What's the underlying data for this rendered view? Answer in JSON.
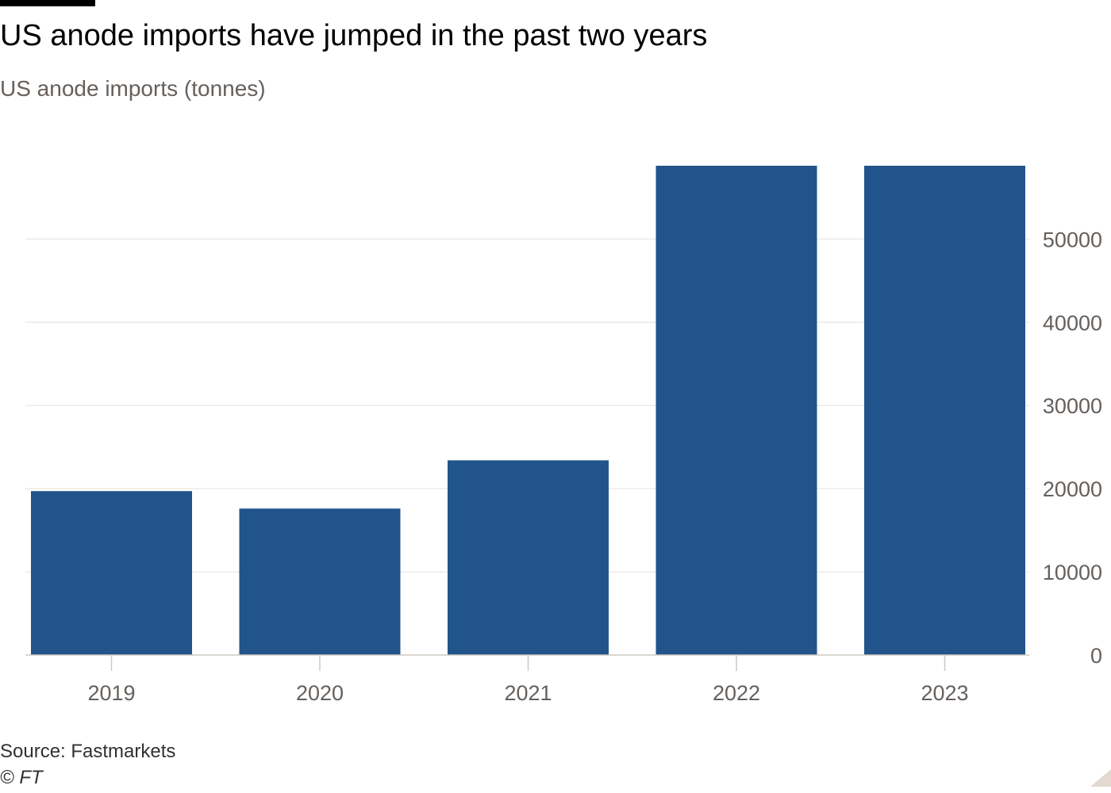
{
  "title": "US anode imports have jumped in the past two years",
  "subtitle": "US anode imports (tonnes)",
  "source": "Source: Fastmarkets",
  "copyright": "© FT",
  "colors": {
    "bar": "#21548b",
    "grid": "#e6e0d9",
    "axis_text": "#66605c",
    "baseline": "#cfc8c1"
  },
  "chart_data": {
    "type": "bar",
    "title": "US anode imports have jumped in the past two years",
    "subtitle": "US anode imports (tonnes)",
    "xlabel": "",
    "ylabel": "",
    "categories": [
      "2019",
      "2020",
      "2021",
      "2022",
      "2023"
    ],
    "values": [
      19700,
      17600,
      23400,
      58800,
      58800
    ],
    "yticks": [
      0,
      10000,
      20000,
      30000,
      40000,
      50000
    ],
    "ylim": [
      0,
      58800
    ],
    "grid": true,
    "y_axis_position": "right"
  }
}
